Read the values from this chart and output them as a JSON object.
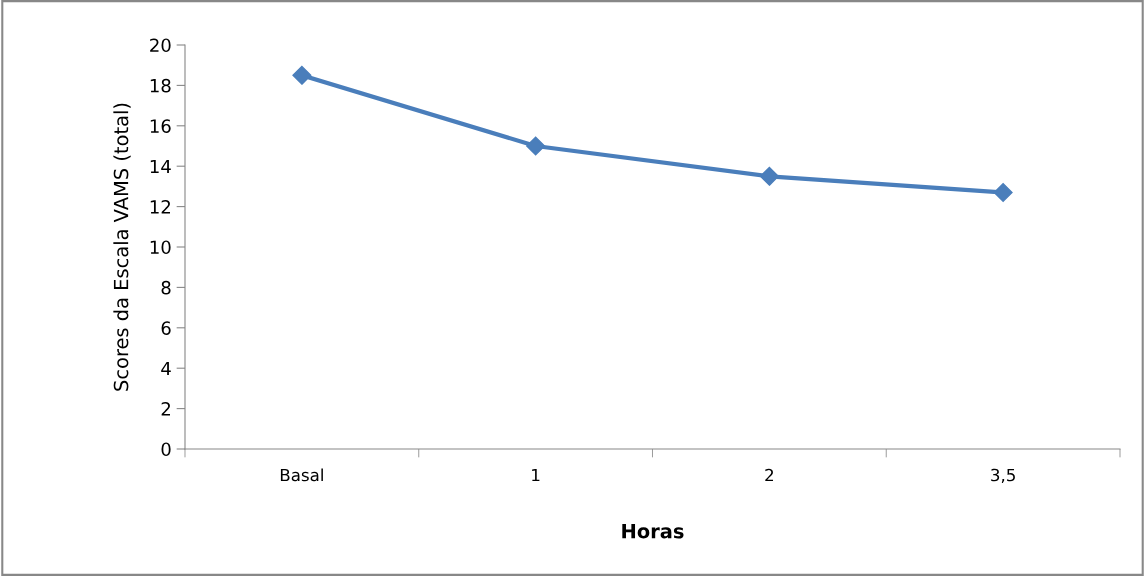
{
  "chart_data": {
    "type": "line",
    "xlabel": "Horas",
    "ylabel": "Scores da Escala VAMS (total)",
    "categories": [
      "Basal",
      "1",
      "2",
      "3,5"
    ],
    "series": [
      {
        "color": "#4a7ebb",
        "values": [
          18.5,
          15.0,
          13.5,
          12.7
        ]
      }
    ],
    "ylim": [
      0,
      20
    ],
    "yticks": [
      0,
      2,
      4,
      6,
      8,
      10,
      12,
      14,
      16,
      18,
      20
    ],
    "grid": false,
    "legend": false,
    "marker": "diamond",
    "line_style": "solid"
  }
}
